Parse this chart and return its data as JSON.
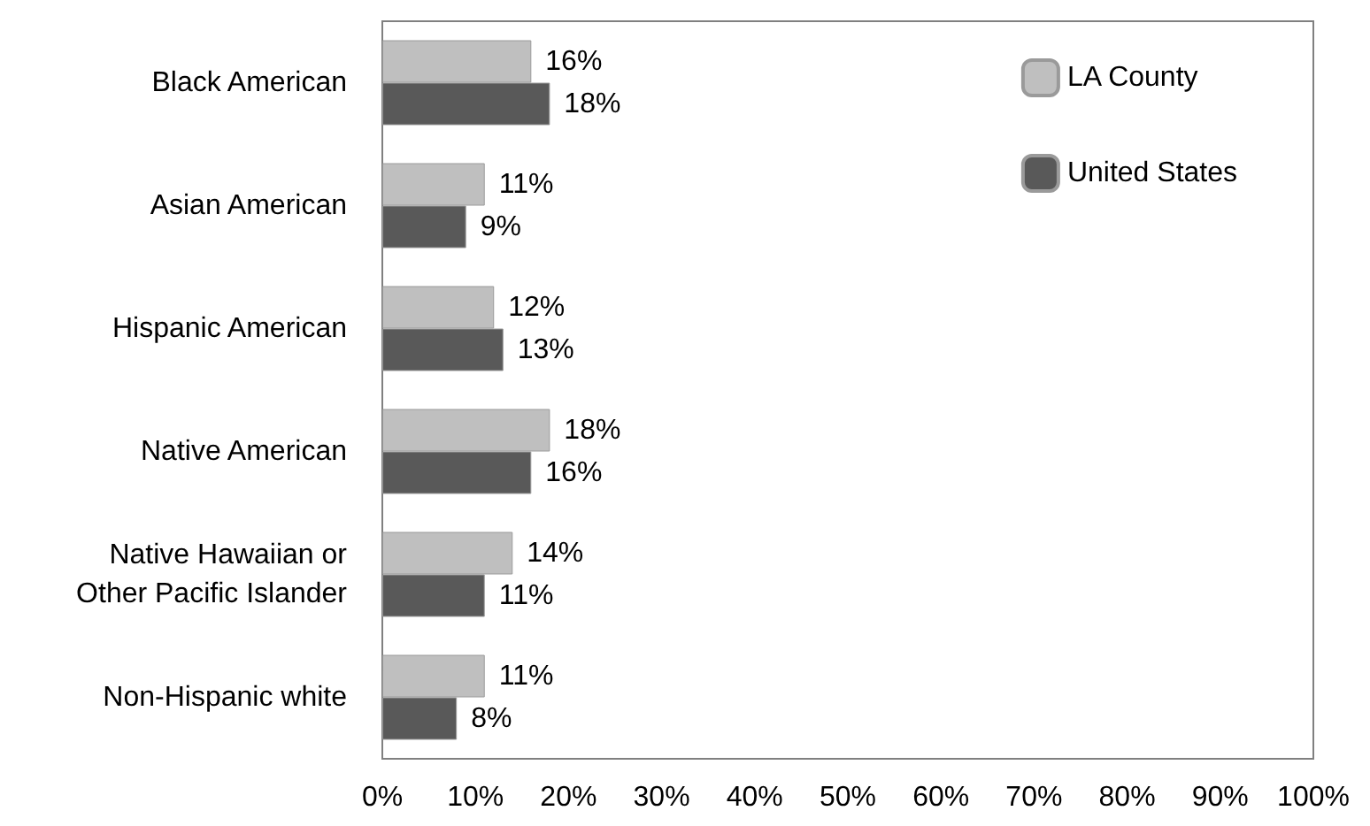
{
  "chart_data": {
    "type": "bar",
    "orientation": "horizontal",
    "categories": [
      "Black American",
      "Asian American",
      "Hispanic American",
      "Native American",
      "Native Hawaiian or\nOther Pacific Islander",
      "Non-Hispanic white"
    ],
    "series": [
      {
        "name": "LA County",
        "color": "#bfbfbf",
        "values": [
          16,
          11,
          12,
          18,
          14,
          11
        ],
        "value_labels": [
          "16%",
          "11%",
          "12%",
          "18%",
          "14%",
          "11%"
        ]
      },
      {
        "name": "United States",
        "color": "#595959",
        "values": [
          18,
          9,
          13,
          16,
          11,
          8
        ],
        "value_labels": [
          "18%",
          "9%",
          "13%",
          "16%",
          "11%",
          "8%"
        ]
      }
    ],
    "xlim": [
      0,
      100
    ],
    "xticks": [
      {
        "value": 0,
        "label": "0%"
      },
      {
        "value": 10,
        "label": "10%"
      },
      {
        "value": 20,
        "label": "20%"
      },
      {
        "value": 30,
        "label": "30%"
      },
      {
        "value": 40,
        "label": "40%"
      },
      {
        "value": 50,
        "label": "50%"
      },
      {
        "value": 60,
        "label": "60%"
      },
      {
        "value": 70,
        "label": "70%"
      },
      {
        "value": 80,
        "label": "80%"
      },
      {
        "value": 90,
        "label": "90%"
      },
      {
        "value": 100,
        "label": "100%"
      }
    ],
    "grid": false,
    "legend": "top right"
  }
}
